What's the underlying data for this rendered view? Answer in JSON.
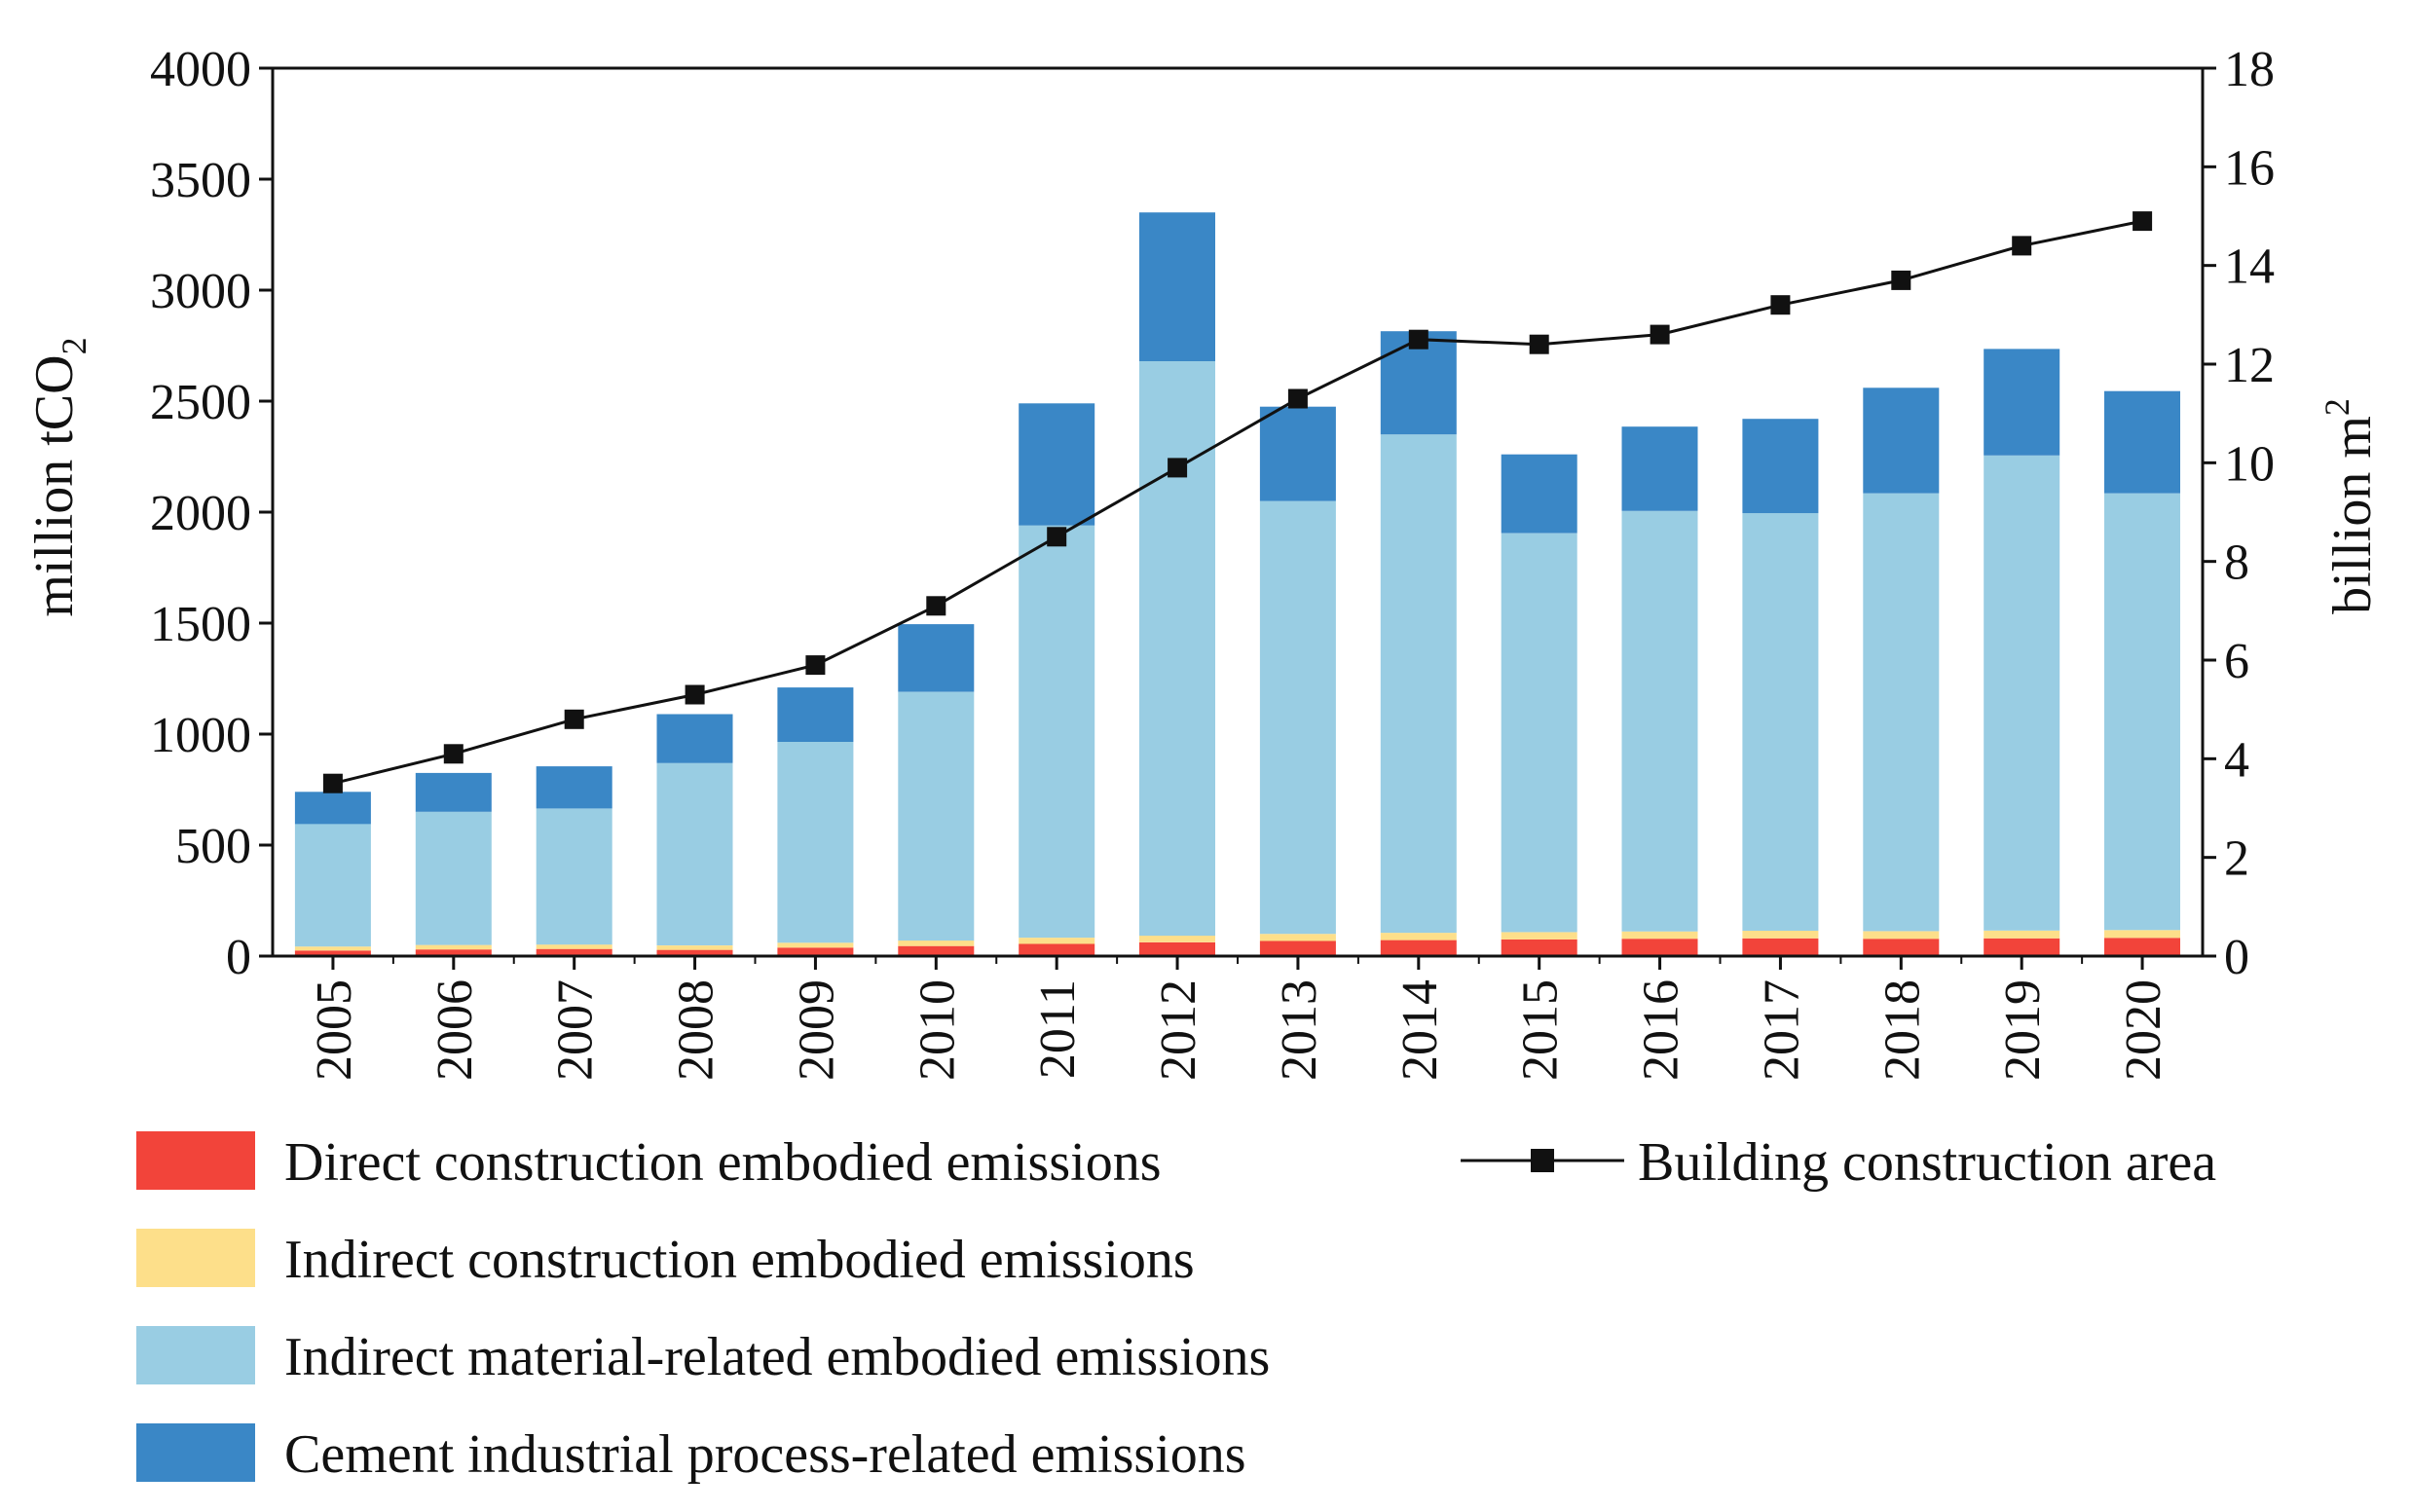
{
  "chart_data": {
    "type": "bar",
    "stacked": true,
    "categories": [
      "2005",
      "2006",
      "2007",
      "2008",
      "2009",
      "2010",
      "2011",
      "2012",
      "2013",
      "2014",
      "2015",
      "2016",
      "2017",
      "2018",
      "2019",
      "2020"
    ],
    "series": [
      {
        "name": "Direct construction embodied  emissions",
        "color": "#f2443a",
        "values": [
          25,
          30,
          32,
          28,
          38,
          45,
          55,
          62,
          68,
          72,
          75,
          78,
          80,
          78,
          80,
          82
        ]
      },
      {
        "name": "Indirect construction embodied emissions",
        "color": "#fddf8a",
        "values": [
          18,
          20,
          20,
          20,
          22,
          25,
          28,
          30,
          32,
          33,
          33,
          33,
          34,
          34,
          35,
          35
        ]
      },
      {
        "name": "Indirect material-related embodied emissions",
        "color": "#99cde3",
        "values": [
          552,
          600,
          613,
          822,
          905,
          1120,
          1857,
          2588,
          1950,
          2245,
          1797,
          1894,
          1881,
          1973,
          2140,
          1968
        ]
      },
      {
        "name": "Cement industrial process-related emissions",
        "color": "#3a87c6",
        "values": [
          145,
          175,
          190,
          220,
          245,
          305,
          550,
          670,
          425,
          465,
          355,
          380,
          425,
          475,
          480,
          460
        ]
      }
    ],
    "line_series": {
      "name": "Building construction area",
      "color": "#111111",
      "axis": "right",
      "values": [
        3.5,
        4.1,
        4.8,
        5.3,
        5.9,
        7.1,
        8.5,
        9.9,
        11.3,
        12.5,
        12.4,
        12.6,
        13.2,
        13.7,
        14.4,
        14.9
      ]
    },
    "ylabel": {
      "main": "million tCO",
      "sub": "2"
    },
    "y2label": {
      "main": "billion m",
      "sup": "2"
    },
    "ylim": [
      0,
      4000
    ],
    "y2lim": [
      0,
      18
    ],
    "yticks": [
      "0",
      "500",
      "1000",
      "1500",
      "2000",
      "2500",
      "3000",
      "3500",
      "4000"
    ],
    "y2ticks": [
      "0",
      "2",
      "4",
      "6",
      "8",
      "10",
      "12",
      "14",
      "16",
      "18"
    ],
    "legend_position": "bottom"
  }
}
